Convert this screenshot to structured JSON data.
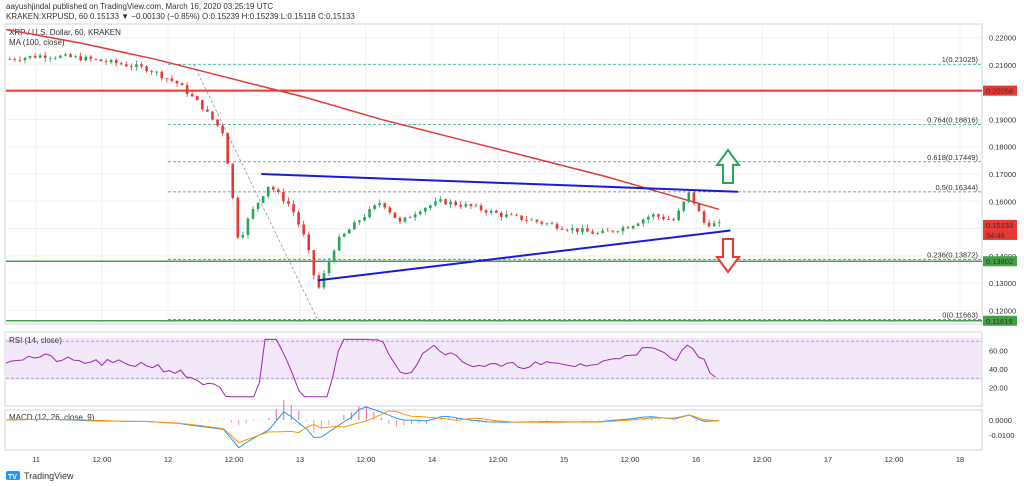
{
  "header": {
    "publisher": "aayushjindal published on TradingView.com, March 16, 2020 03:25:19 UTC",
    "ticker_line": "KRAKEN:XRPUSD, 60",
    "ohlc": "0.15133 ▼ −0.00130 (−0.85%) O:0.15239 H:0.15239 L:0.15118 C:0.15133",
    "symbol_desc": "XRP / U.S. Dollar, 60, KRAKEN",
    "ma_label": "MA (100, close)"
  },
  "footer": {
    "brand": "TradingView"
  },
  "price_axis": {
    "ticks": [
      "0.22000",
      "0.21000",
      "0.20000",
      "0.19000",
      "0.18000",
      "0.17000",
      "0.16000",
      "0.15000",
      "0.14000",
      "0.13000",
      "0.12000"
    ],
    "badges": [
      {
        "text": "0.20056",
        "color": "#e53935"
      },
      {
        "text": "0.15133",
        "color": "#e53935"
      },
      {
        "text": "34:46",
        "color": "#e53935"
      },
      {
        "text": "0.13802",
        "color": "#43a047"
      },
      {
        "text": "0.11619",
        "color": "#43a047"
      }
    ]
  },
  "time_axis": {
    "labels": [
      "11",
      "12:00",
      "12",
      "12:00",
      "13",
      "12:00",
      "14",
      "12:00",
      "15",
      "12:00",
      "16",
      "12:00",
      "17",
      "12:00",
      "18"
    ]
  },
  "fib_labels": [
    "1(0.21025)",
    "0.764(0.18816)",
    "0.618(0.17449)",
    "0.5(0.16344)",
    "0.236(0.13872)",
    "0(0.11663)"
  ],
  "rsi": {
    "label": "RSI (14, close)",
    "ticks": [
      "60.00",
      "40.00",
      "20.00"
    ]
  },
  "macd": {
    "label": "MACD (12, 26, close, 9)",
    "ticks": [
      "0.0000",
      "-0.0100"
    ]
  },
  "colors": {
    "ma": "#e53935",
    "trend": "#1a1adc",
    "up": "#26a65b",
    "down": "#e53935",
    "rsi": "#9c27b0",
    "fib": "#26a69a"
  },
  "chart_data": {
    "type": "candlestick",
    "symbol": "XRP / U.S. Dollar, 60, KRAKEN",
    "ylim": [
      0.115,
      0.225
    ],
    "horizontal_levels": [
      0.20056,
      0.13802,
      0.11619
    ],
    "fib_levels": [
      0.21025,
      0.18816,
      0.17449,
      0.16344,
      0.13872,
      0.11663
    ],
    "close_path": [
      {
        "x": 0,
        "y": 0.212
      },
      {
        "x": 10,
        "y": 0.2135
      },
      {
        "x": 20,
        "y": 0.2125
      },
      {
        "x": 30,
        "y": 0.2105
      },
      {
        "x": 38,
        "y": 0.2085
      },
      {
        "x": 46,
        "y": 0.203
      },
      {
        "x": 52,
        "y": 0.195
      },
      {
        "x": 58,
        "y": 0.185
      },
      {
        "x": 60,
        "y": 0.165
      },
      {
        "x": 62,
        "y": 0.145
      },
      {
        "x": 65,
        "y": 0.155
      },
      {
        "x": 70,
        "y": 0.166
      },
      {
        "x": 76,
        "y": 0.158
      },
      {
        "x": 80,
        "y": 0.145
      },
      {
        "x": 83,
        "y": 0.127
      },
      {
        "x": 88,
        "y": 0.145
      },
      {
        "x": 94,
        "y": 0.153
      },
      {
        "x": 100,
        "y": 0.16
      },
      {
        "x": 105,
        "y": 0.152
      },
      {
        "x": 110,
        "y": 0.157
      },
      {
        "x": 116,
        "y": 0.16
      },
      {
        "x": 124,
        "y": 0.158
      },
      {
        "x": 132,
        "y": 0.155
      },
      {
        "x": 140,
        "y": 0.153
      },
      {
        "x": 150,
        "y": 0.15
      },
      {
        "x": 158,
        "y": 0.148
      },
      {
        "x": 166,
        "y": 0.151
      },
      {
        "x": 172,
        "y": 0.155
      },
      {
        "x": 178,
        "y": 0.153
      },
      {
        "x": 182,
        "y": 0.163
      },
      {
        "x": 186,
        "y": 0.152
      },
      {
        "x": 190,
        "y": 0.15133
      }
    ],
    "ma100": [
      {
        "x": 0,
        "y": 0.223
      },
      {
        "x": 20,
        "y": 0.218
      },
      {
        "x": 40,
        "y": 0.212
      },
      {
        "x": 60,
        "y": 0.205
      },
      {
        "x": 80,
        "y": 0.198
      },
      {
        "x": 100,
        "y": 0.19
      },
      {
        "x": 120,
        "y": 0.183
      },
      {
        "x": 140,
        "y": 0.176
      },
      {
        "x": 160,
        "y": 0.169
      },
      {
        "x": 175,
        "y": 0.163
      },
      {
        "x": 190,
        "y": 0.157
      }
    ],
    "trendlines": [
      {
        "from": {
          "x": 68,
          "y": 0.17
        },
        "to": {
          "x": 195,
          "y": 0.1635
        }
      },
      {
        "from": {
          "x": 83,
          "y": 0.131
        },
        "to": {
          "x": 193,
          "y": 0.1493
        }
      }
    ],
    "x_range": [
      0,
      260
    ]
  }
}
